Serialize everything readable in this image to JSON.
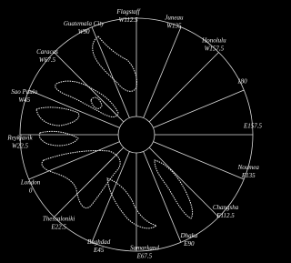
{
  "labels": [
    {
      "city": "Flagstaff",
      "longitude": "W112.5"
    },
    {
      "city": "Juneau",
      "longitude": "W135"
    },
    {
      "city": "Honolulu",
      "longitude": "W157.5"
    },
    {
      "longitude": "180"
    },
    {
      "longitude": "E157.5"
    },
    {
      "city": "Noumea",
      "longitude": "E135"
    },
    {
      "city": "Changsha",
      "longitude": "E112.5"
    },
    {
      "city": "Dhaka",
      "longitude": "E90"
    },
    {
      "city": "Samarkand",
      "longitude": "E67.5"
    },
    {
      "city": "Baghdad",
      "longitude": "E45"
    },
    {
      "city": "Thessaloniki",
      "longitude": "E22.5"
    },
    {
      "city": "London",
      "longitude": "0"
    },
    {
      "city": "Reykjavik",
      "longitude": "W22.5"
    },
    {
      "city": "Sao Paulo",
      "longitude": "W45"
    },
    {
      "city": "Caracas",
      "longitude": "W67.5"
    },
    {
      "city": "Guatemala City",
      "longitude": "W90"
    }
  ]
}
